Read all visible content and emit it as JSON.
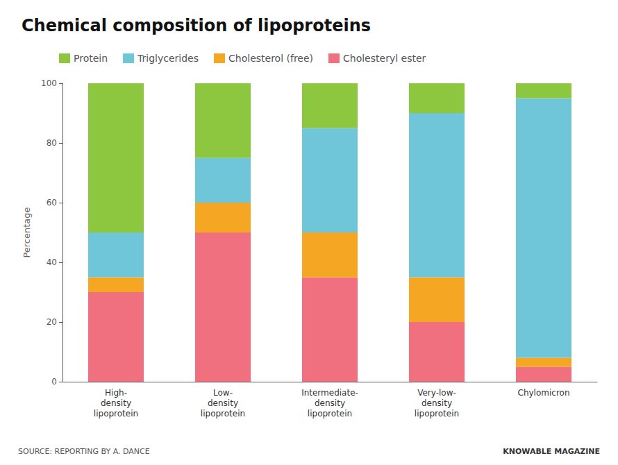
{
  "chart_data": {
    "type": "bar",
    "title": "Chemical composition of lipoproteins",
    "categories": [
      "High-\ndensity\nlipoprotein",
      "Low-\ndensity\nlipoprotein",
      "Intermediate-\ndensity\nlipoprotein",
      "Very-low-\ndensity\nlipoprotein",
      "Chylomicron"
    ],
    "series": [
      {
        "name": "Cholesteryl ester",
        "color": "#f07080",
        "values": [
          30,
          50,
          35,
          20,
          5
        ]
      },
      {
        "name": "Cholesterol (free)",
        "color": "#f5a623",
        "values": [
          5,
          10,
          15,
          15,
          3
        ]
      },
      {
        "name": "Triglycerides",
        "color": "#6ec6d8",
        "values": [
          15,
          15,
          35,
          55,
          87
        ]
      },
      {
        "name": "Protein",
        "color": "#8dc63f",
        "values": [
          50,
          25,
          15,
          10,
          5
        ]
      }
    ],
    "ylabel": "Percentage",
    "ylim": [
      0,
      100
    ],
    "yticks": [
      0,
      20,
      40,
      60,
      80,
      100
    ],
    "stacked": true,
    "grid": false,
    "legend": "top-left",
    "annotations": [
      "SOURCE: REPORTING BY A. DANCE",
      "KNOWABLE MAGAZINE"
    ]
  }
}
